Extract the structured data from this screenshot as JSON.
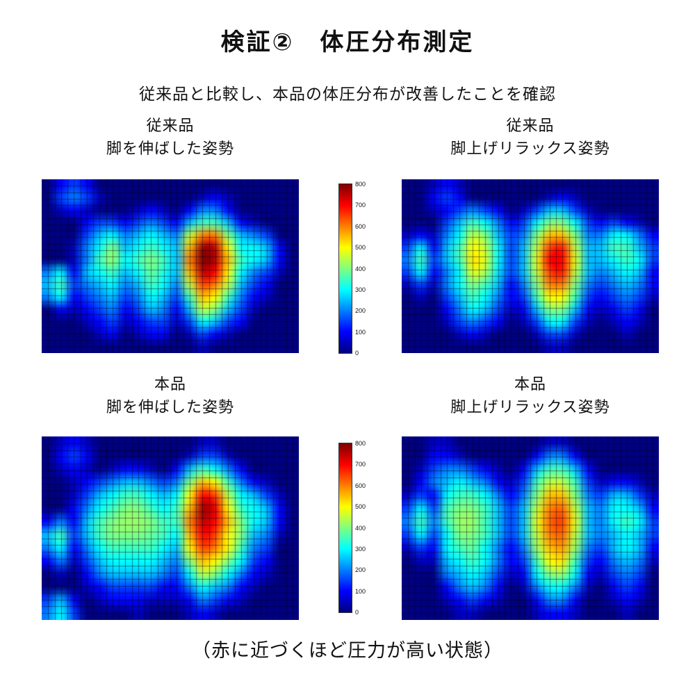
{
  "page": {
    "title": "検証②　体圧分布測定",
    "subtitle": "従来品と比較し、本品の体圧分布が改善したことを確認",
    "footer": "（赤に近づくほど圧力が高い状態）"
  },
  "panels": [
    {
      "line1": "従来品",
      "line2": "脚を伸ばした姿勢"
    },
    {
      "line1": "従来品",
      "line2": "脚上げリラックス姿勢"
    },
    {
      "line1": "本品",
      "line2": "脚を伸ばした姿勢"
    },
    {
      "line1": "本品",
      "line2": "脚上げリラックス姿勢"
    }
  ],
  "colorbar": {
    "min": 0,
    "max": 800,
    "ticks": [
      800,
      700,
      600,
      500,
      400,
      300,
      200,
      100,
      0
    ]
  },
  "chart_data": [
    {
      "type": "heatmap",
      "title": "従来品 脚を伸ばした姿勢",
      "value_range": [
        0,
        800
      ],
      "colormap": "jet",
      "grid": [
        [
          0,
          100,
          150,
          100,
          0,
          0,
          0,
          0,
          0,
          0,
          0,
          0,
          0,
          0,
          0,
          0,
          0,
          0,
          0,
          0
        ],
        [
          0,
          150,
          200,
          150,
          50,
          0,
          0,
          0,
          0,
          0,
          0,
          0,
          50,
          100,
          50,
          0,
          0,
          0,
          0,
          0
        ],
        [
          0,
          50,
          100,
          50,
          0,
          0,
          0,
          50,
          100,
          50,
          0,
          100,
          200,
          200,
          100,
          0,
          0,
          0,
          0,
          0
        ],
        [
          0,
          0,
          0,
          100,
          150,
          150,
          100,
          150,
          200,
          150,
          100,
          250,
          350,
          350,
          250,
          100,
          50,
          0,
          0,
          0
        ],
        [
          0,
          0,
          0,
          150,
          250,
          300,
          200,
          250,
          300,
          250,
          200,
          450,
          600,
          600,
          400,
          250,
          200,
          150,
          0,
          0
        ],
        [
          0,
          0,
          50,
          200,
          300,
          400,
          250,
          300,
          350,
          300,
          250,
          550,
          780,
          750,
          500,
          300,
          300,
          250,
          100,
          0
        ],
        [
          0,
          0,
          50,
          200,
          350,
          420,
          300,
          350,
          400,
          350,
          250,
          600,
          800,
          760,
          550,
          350,
          300,
          250,
          100,
          0
        ],
        [
          200,
          300,
          100,
          250,
          300,
          350,
          250,
          300,
          380,
          320,
          250,
          550,
          750,
          700,
          500,
          300,
          200,
          150,
          50,
          0
        ],
        [
          250,
          350,
          150,
          200,
          250,
          300,
          200,
          250,
          350,
          300,
          200,
          450,
          650,
          600,
          450,
          250,
          150,
          100,
          0,
          0
        ],
        [
          200,
          300,
          100,
          150,
          200,
          250,
          150,
          200,
          300,
          250,
          150,
          350,
          550,
          500,
          350,
          200,
          100,
          50,
          0,
          0
        ],
        [
          0,
          100,
          50,
          100,
          150,
          200,
          100,
          150,
          250,
          200,
          100,
          250,
          450,
          400,
          250,
          150,
          50,
          0,
          0,
          0
        ],
        [
          0,
          0,
          0,
          50,
          100,
          150,
          50,
          100,
          150,
          150,
          50,
          150,
          300,
          250,
          150,
          100,
          0,
          0,
          0,
          0
        ],
        [
          0,
          0,
          0,
          0,
          50,
          100,
          0,
          50,
          100,
          100,
          0,
          50,
          150,
          100,
          50,
          0,
          0,
          0,
          0,
          0
        ],
        [
          0,
          0,
          0,
          0,
          0,
          0,
          0,
          0,
          0,
          0,
          0,
          0,
          50,
          0,
          0,
          0,
          0,
          0,
          0,
          0
        ]
      ]
    },
    {
      "type": "heatmap",
      "title": "従来品 脚上げリラックス姿勢",
      "value_range": [
        0,
        800
      ],
      "colormap": "jet",
      "grid": [
        [
          0,
          0,
          50,
          100,
          50,
          0,
          0,
          0,
          0,
          0,
          0,
          0,
          0,
          0,
          0,
          0,
          0,
          0,
          0,
          0
        ],
        [
          0,
          0,
          100,
          150,
          100,
          0,
          0,
          0,
          0,
          0,
          0,
          50,
          100,
          50,
          0,
          0,
          0,
          0,
          0,
          0
        ],
        [
          0,
          0,
          50,
          100,
          150,
          200,
          150,
          100,
          0,
          50,
          150,
          250,
          250,
          150,
          50,
          0,
          0,
          0,
          0,
          0
        ],
        [
          0,
          0,
          0,
          150,
          250,
          350,
          300,
          200,
          100,
          150,
          300,
          400,
          400,
          300,
          150,
          100,
          150,
          100,
          50,
          0
        ],
        [
          50,
          100,
          50,
          200,
          300,
          450,
          400,
          250,
          150,
          200,
          400,
          550,
          550,
          400,
          200,
          200,
          300,
          300,
          200,
          100
        ],
        [
          150,
          300,
          100,
          250,
          350,
          500,
          450,
          300,
          150,
          250,
          450,
          650,
          680,
          450,
          250,
          250,
          350,
          350,
          250,
          150
        ],
        [
          200,
          350,
          150,
          250,
          350,
          520,
          470,
          300,
          150,
          250,
          480,
          700,
          700,
          480,
          250,
          250,
          300,
          350,
          300,
          150
        ],
        [
          150,
          300,
          100,
          200,
          300,
          480,
          430,
          280,
          150,
          250,
          450,
          650,
          680,
          450,
          250,
          200,
          250,
          300,
          250,
          100
        ],
        [
          50,
          150,
          50,
          200,
          300,
          400,
          350,
          250,
          100,
          200,
          400,
          600,
          600,
          400,
          200,
          150,
          200,
          250,
          200,
          100
        ],
        [
          0,
          50,
          0,
          150,
          250,
          350,
          300,
          200,
          100,
          150,
          350,
          500,
          500,
          350,
          150,
          100,
          150,
          200,
          150,
          50
        ],
        [
          0,
          0,
          0,
          100,
          200,
          300,
          250,
          150,
          50,
          100,
          250,
          400,
          400,
          250,
          100,
          50,
          100,
          150,
          100,
          0
        ],
        [
          0,
          0,
          0,
          50,
          150,
          200,
          150,
          100,
          0,
          50,
          150,
          300,
          300,
          150,
          50,
          0,
          50,
          100,
          50,
          0
        ],
        [
          0,
          0,
          0,
          0,
          50,
          100,
          50,
          0,
          0,
          0,
          50,
          150,
          150,
          50,
          0,
          0,
          0,
          50,
          0,
          0
        ],
        [
          0,
          0,
          0,
          0,
          0,
          0,
          0,
          0,
          0,
          0,
          0,
          50,
          50,
          0,
          0,
          0,
          0,
          0,
          0,
          0
        ]
      ]
    },
    {
      "type": "heatmap",
      "title": "本品 脚を伸ばした姿勢",
      "value_range": [
        0,
        800
      ],
      "colormap": "jet",
      "grid": [
        [
          0,
          50,
          100,
          50,
          0,
          0,
          0,
          0,
          0,
          0,
          0,
          0,
          50,
          50,
          0,
          0,
          0,
          0,
          0,
          0
        ],
        [
          0,
          100,
          150,
          100,
          0,
          0,
          0,
          0,
          0,
          0,
          0,
          50,
          150,
          150,
          50,
          0,
          0,
          0,
          0,
          0
        ],
        [
          0,
          50,
          100,
          50,
          0,
          50,
          100,
          100,
          50,
          0,
          100,
          250,
          350,
          300,
          200,
          100,
          0,
          0,
          0,
          0
        ],
        [
          0,
          0,
          50,
          100,
          150,
          200,
          250,
          250,
          200,
          150,
          200,
          400,
          550,
          500,
          350,
          200,
          100,
          50,
          0,
          0
        ],
        [
          0,
          0,
          50,
          150,
          250,
          300,
          350,
          350,
          300,
          250,
          300,
          500,
          700,
          650,
          450,
          300,
          250,
          150,
          50,
          0
        ],
        [
          0,
          0,
          100,
          200,
          300,
          350,
          400,
          400,
          350,
          300,
          350,
          550,
          780,
          720,
          500,
          350,
          300,
          250,
          100,
          0
        ],
        [
          100,
          200,
          100,
          250,
          350,
          400,
          420,
          420,
          400,
          350,
          350,
          600,
          750,
          700,
          550,
          400,
          300,
          250,
          100,
          0
        ],
        [
          250,
          350,
          150,
          250,
          350,
          400,
          400,
          400,
          380,
          350,
          300,
          550,
          700,
          650,
          500,
          400,
          250,
          200,
          50,
          0
        ],
        [
          200,
          300,
          100,
          200,
          300,
          350,
          350,
          350,
          350,
          300,
          250,
          500,
          650,
          600,
          500,
          350,
          200,
          150,
          0,
          0
        ],
        [
          100,
          200,
          50,
          150,
          250,
          300,
          300,
          300,
          300,
          250,
          200,
          400,
          550,
          500,
          400,
          300,
          150,
          100,
          0,
          0
        ],
        [
          0,
          50,
          0,
          100,
          200,
          250,
          250,
          250,
          250,
          200,
          150,
          300,
          450,
          400,
          300,
          200,
          100,
          50,
          0,
          0
        ],
        [
          0,
          0,
          0,
          50,
          100,
          150,
          150,
          150,
          150,
          100,
          100,
          200,
          300,
          250,
          200,
          100,
          50,
          0,
          0,
          0
        ],
        [
          150,
          250,
          100,
          0,
          50,
          100,
          100,
          100,
          50,
          50,
          50,
          100,
          200,
          150,
          100,
          50,
          0,
          0,
          0,
          0
        ],
        [
          200,
          300,
          150,
          0,
          0,
          0,
          0,
          50,
          0,
          0,
          0,
          50,
          100,
          50,
          0,
          0,
          0,
          0,
          0,
          0
        ]
      ]
    },
    {
      "type": "heatmap",
      "title": "本品 脚上げリラックス姿勢",
      "value_range": [
        0,
        800
      ],
      "colormap": "jet",
      "grid": [
        [
          0,
          0,
          50,
          50,
          0,
          0,
          0,
          0,
          0,
          0,
          0,
          50,
          50,
          0,
          0,
          0,
          0,
          0,
          0,
          0
        ],
        [
          0,
          0,
          100,
          100,
          50,
          0,
          0,
          0,
          0,
          0,
          100,
          200,
          200,
          100,
          0,
          0,
          0,
          0,
          0,
          0
        ],
        [
          0,
          50,
          150,
          200,
          200,
          150,
          100,
          50,
          0,
          100,
          250,
          350,
          350,
          250,
          100,
          0,
          0,
          0,
          0,
          0
        ],
        [
          0,
          100,
          200,
          250,
          300,
          250,
          200,
          100,
          50,
          150,
          350,
          450,
          450,
          350,
          150,
          50,
          100,
          100,
          50,
          0
        ],
        [
          50,
          150,
          100,
          300,
          350,
          350,
          300,
          200,
          100,
          200,
          400,
          550,
          550,
          400,
          200,
          150,
          250,
          250,
          150,
          50
        ],
        [
          150,
          300,
          150,
          350,
          400,
          400,
          350,
          250,
          150,
          250,
          450,
          600,
          620,
          450,
          250,
          200,
          300,
          300,
          250,
          100
        ],
        [
          200,
          350,
          200,
          350,
          420,
          420,
          350,
          250,
          150,
          250,
          480,
          620,
          650,
          480,
          250,
          200,
          300,
          350,
          300,
          150
        ],
        [
          150,
          300,
          150,
          300,
          400,
          400,
          350,
          250,
          150,
          250,
          450,
          600,
          620,
          450,
          250,
          200,
          250,
          300,
          250,
          150
        ],
        [
          50,
          150,
          100,
          300,
          350,
          380,
          300,
          200,
          100,
          200,
          420,
          550,
          580,
          420,
          200,
          150,
          250,
          300,
          250,
          100
        ],
        [
          0,
          50,
          50,
          250,
          300,
          350,
          300,
          200,
          100,
          150,
          350,
          500,
          520,
          350,
          150,
          100,
          200,
          250,
          200,
          50
        ],
        [
          0,
          0,
          0,
          200,
          250,
          300,
          250,
          150,
          50,
          100,
          300,
          400,
          420,
          300,
          100,
          50,
          150,
          200,
          150,
          0
        ],
        [
          0,
          0,
          0,
          100,
          200,
          250,
          200,
          100,
          0,
          50,
          200,
          300,
          300,
          200,
          50,
          0,
          100,
          150,
          100,
          0
        ],
        [
          0,
          0,
          0,
          50,
          100,
          150,
          100,
          50,
          0,
          0,
          100,
          200,
          200,
          100,
          0,
          0,
          50,
          100,
          50,
          0
        ],
        [
          0,
          0,
          0,
          0,
          50,
          50,
          0,
          0,
          0,
          0,
          50,
          100,
          100,
          50,
          0,
          0,
          0,
          50,
          0,
          0
        ]
      ]
    }
  ]
}
